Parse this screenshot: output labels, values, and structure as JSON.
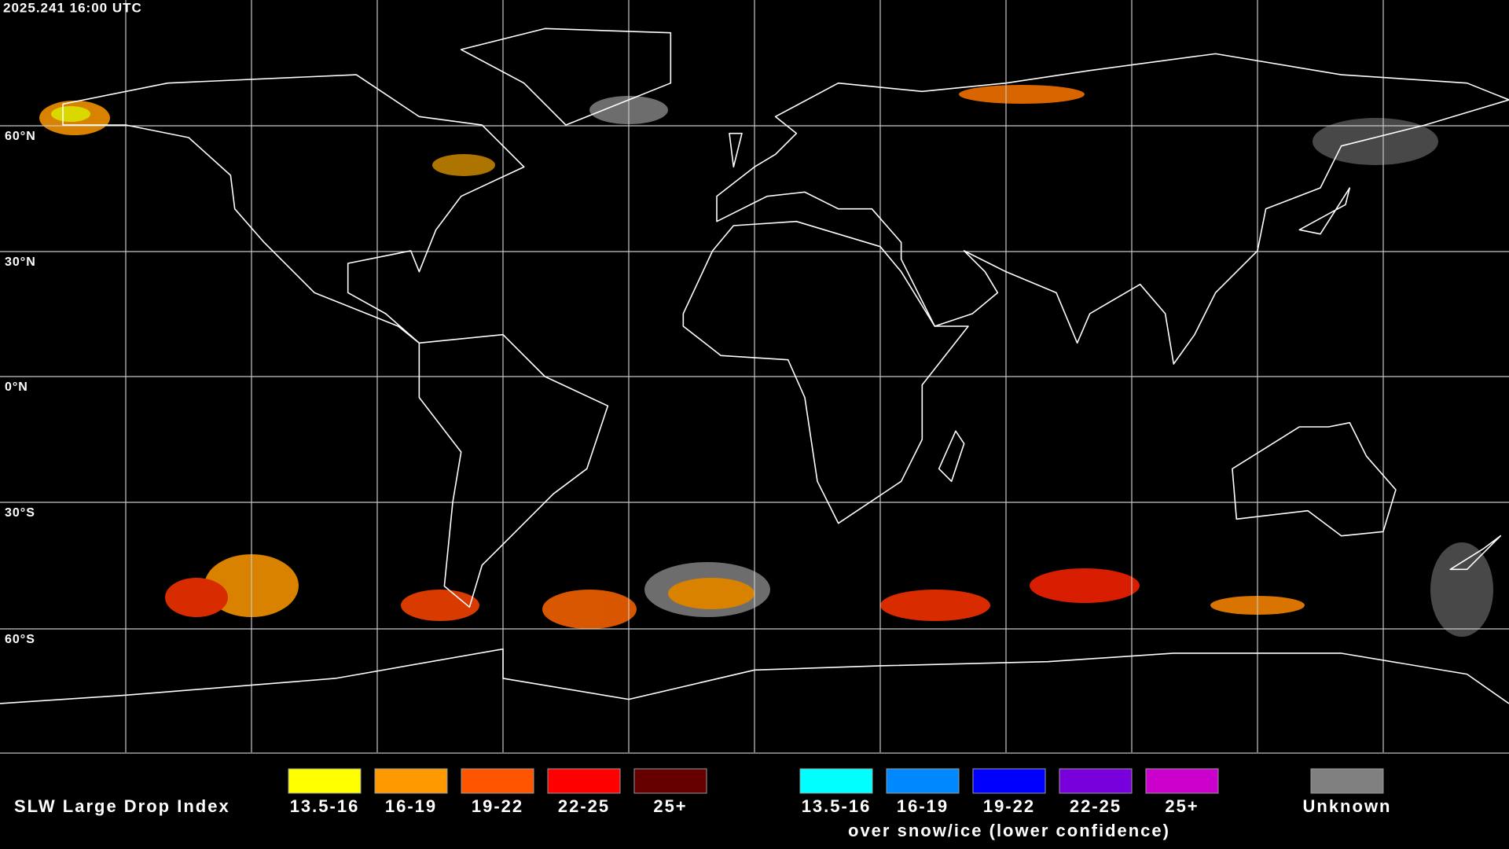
{
  "timestamp": "2025.241 16:00 UTC",
  "map": {
    "latitude_labels": [
      "60°N",
      "30°N",
      "0°N",
      "30°S",
      "60°S"
    ]
  },
  "legend": {
    "title": "SLW Large Drop Index",
    "groups": [
      {
        "items": [
          {
            "label": "13.5-16",
            "color": "#ffff00"
          },
          {
            "label": "16-19",
            "color": "#ff9900"
          },
          {
            "label": "19-22",
            "color": "#ff5500"
          },
          {
            "label": "22-25",
            "color": "#ff0000"
          },
          {
            "label": "25+",
            "color": "#660000"
          }
        ]
      },
      {
        "items": [
          {
            "label": "13.5-16",
            "color": "#00ffff"
          },
          {
            "label": "16-19",
            "color": "#0088ff"
          },
          {
            "label": "19-22",
            "color": "#0000ff"
          },
          {
            "label": "22-25",
            "color": "#7700dd"
          },
          {
            "label": "25+",
            "color": "#cc00cc"
          }
        ],
        "caption": "over snow/ice (lower confidence)"
      }
    ],
    "unknown": {
      "label": "Unknown",
      "color": "#808080"
    }
  }
}
